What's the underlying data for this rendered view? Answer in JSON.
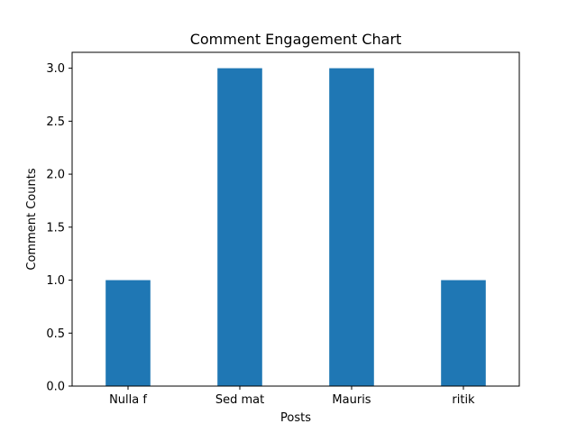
{
  "chart_data": {
    "type": "bar",
    "title": "Comment Engagement Chart",
    "xlabel": "Posts",
    "ylabel": "Comment Counts",
    "categories": [
      "Nulla f",
      "Sed mat",
      "Mauris",
      "ritik"
    ],
    "values": [
      1,
      3,
      3,
      1
    ],
    "ylim": [
      0,
      3.15
    ],
    "yticks": [
      0.0,
      0.5,
      1.0,
      1.5,
      2.0,
      2.5,
      3.0
    ],
    "ytick_labels": [
      "0.0",
      "0.5",
      "1.0",
      "1.5",
      "2.0",
      "2.5",
      "3.0"
    ],
    "grid": false,
    "bar_color": "#1f77b4"
  }
}
